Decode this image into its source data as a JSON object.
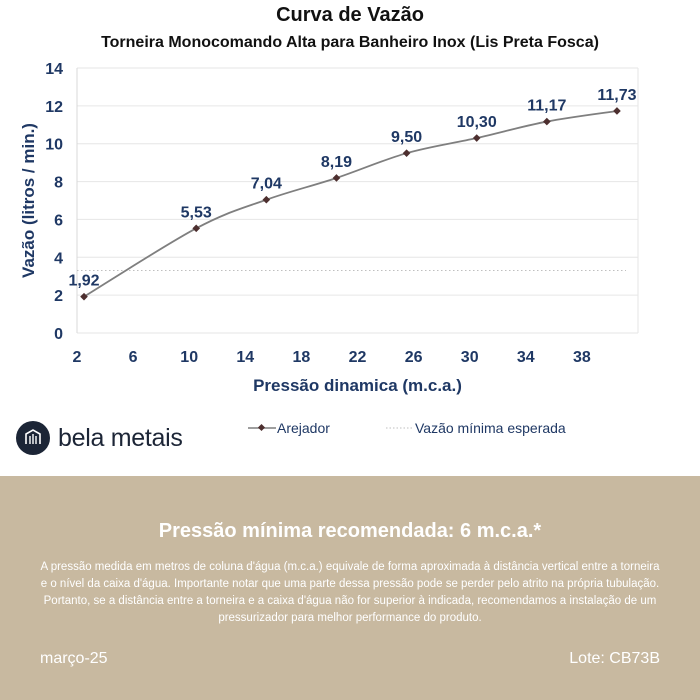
{
  "chart_data": {
    "type": "line",
    "title": "Curva de Vazão",
    "subtitle": "Torneira Monocomando Alta para Banheiro Inox (Lis Preta Fosca)",
    "xlabel": "Pressão dinamica (m.c.a.)",
    "ylabel": "Vazão (litros / min.)",
    "xlim": [
      2,
      42
    ],
    "ylim": [
      0,
      14
    ],
    "xticks": [
      2,
      6,
      10,
      14,
      18,
      22,
      26,
      30,
      34,
      38
    ],
    "yticks": [
      0,
      2,
      4,
      6,
      8,
      10,
      12,
      14
    ],
    "grid": true,
    "legend_position": "bottom",
    "series": [
      {
        "name": "Arejador",
        "color": "#7f7f7f",
        "marker_color": "#4d2f2f",
        "x": [
          2.5,
          10.5,
          15.5,
          20.5,
          25.5,
          30.5,
          35.5,
          40.5
        ],
        "y": [
          1.92,
          5.53,
          7.04,
          8.19,
          9.5,
          10.3,
          11.17,
          11.73
        ],
        "labels": [
          "1,92",
          "5,53",
          "7,04",
          "8,19",
          "9,50",
          "10,30",
          "11,17",
          "11,73"
        ]
      },
      {
        "name": "Vazão mínima esperada",
        "style": "dotted",
        "color": "#bfbfbf",
        "y_constant": 3.3
      }
    ]
  },
  "brand": {
    "name": "bela metais",
    "color": "#1c2536"
  },
  "footer": {
    "background": "#c8b9a0",
    "title": "Pressão mínima recomendada: 6 m.c.a.*",
    "text": "A pressão medida em metros de coluna d'água (m.c.a.) equivale de forma aproximada à distância vertical entre a torneira e o nível da caixa d'água. Importante notar que uma parte dessa pressão pode se perder pelo atrito na própria tubulação. Portanto, se a distância entre a torneira e a caixa d'água não for superior à indicada, recomendamos a instalação de um pressurizador para melhor performance do produto.",
    "date": "março-25",
    "lot": "Lote: CB73B"
  }
}
